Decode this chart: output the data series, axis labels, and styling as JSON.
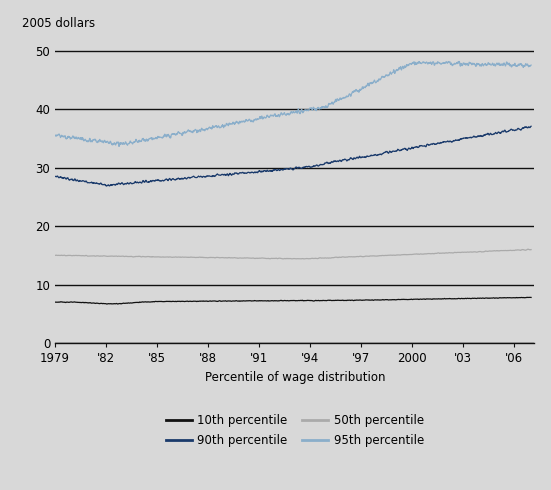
{
  "title_ylabel": "2005 dollars",
  "xlabel": "Percentile of wage distribution",
  "background_color": "#d8d8d8",
  "ylim": [
    0,
    52
  ],
  "yticks": [
    0,
    10,
    20,
    30,
    40,
    50
  ],
  "xlim": [
    1979,
    2007.2
  ],
  "xticks": [
    1979,
    1982,
    1985,
    1988,
    1991,
    1994,
    1997,
    2000,
    2003,
    2006
  ],
  "xticklabels": [
    "1979",
    "'82",
    "'85",
    "'88",
    "'91",
    "'94",
    "'97",
    "2000",
    "'03",
    "'06"
  ],
  "series": {
    "p10": {
      "label": "10th percentile",
      "color": "#111111",
      "linewidth": 0.9
    },
    "p50": {
      "label": "50th percentile",
      "color": "#aaaaaa",
      "linewidth": 0.9
    },
    "p90": {
      "label": "90th percentile",
      "color": "#1a3a6b",
      "linewidth": 0.9
    },
    "p95": {
      "label": "95th percentile",
      "color": "#8aaeca",
      "linewidth": 0.9
    }
  },
  "grid_color": "#111111",
  "grid_linewidth": 1.0
}
